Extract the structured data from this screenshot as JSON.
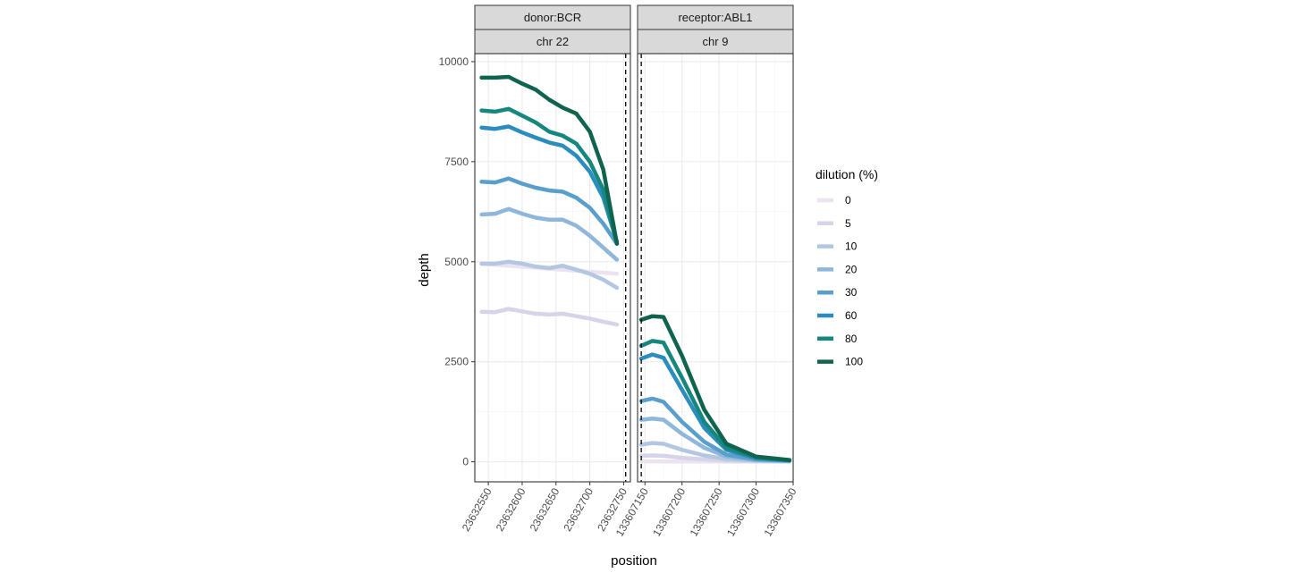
{
  "chart_data": {
    "type": "line",
    "xlabel": "position",
    "ylabel": "depth",
    "ylim": [
      -500,
      10200
    ],
    "y_ticks": [
      0,
      2500,
      5000,
      7500,
      10000
    ],
    "y_tick_labels": [
      "0",
      "2500",
      "5000",
      "7500",
      "10000"
    ],
    "grid": true,
    "legend": {
      "title": "dilution (%)",
      "placement": "right",
      "entries": [
        "0",
        "5",
        "10",
        "20",
        "30",
        "60",
        "80",
        "100"
      ]
    },
    "colors": {
      "0": "#ece2f0",
      "5": "#d5d4e8",
      "10": "#b3c6e2",
      "20": "#8fb6db",
      "30": "#5a9fcc",
      "60": "#2b8cbe",
      "80": "#16877f",
      "100": "#10634f"
    },
    "panels": [
      {
        "strip_top": "donor:BCR",
        "strip_bottom": "chr 22",
        "xlim": [
          23632530,
          23632760
        ],
        "x_ticks": [
          23632550,
          23632600,
          23632650,
          23632700,
          23632750
        ],
        "x_tick_labels": [
          "23632550",
          "23632600",
          "23632650",
          "23632700",
          "23632750"
        ],
        "vline": 23632753,
        "series": [
          {
            "name": "0",
            "x": [
              23632540,
              23632580,
              23632620,
              23632660,
              23632700,
              23632740
            ],
            "values": [
              4950,
              4900,
              4850,
              4800,
              4750,
              4700
            ]
          },
          {
            "name": "5",
            "x": [
              23632540,
              23632560,
              23632580,
              23632600,
              23632620,
              23632640,
              23632660,
              23632680,
              23632700,
              23632720,
              23632740
            ],
            "values": [
              3750,
              3740,
              3820,
              3760,
              3700,
              3680,
              3700,
              3640,
              3580,
              3500,
              3430
            ]
          },
          {
            "name": "10",
            "x": [
              23632540,
              23632560,
              23632580,
              23632600,
              23632620,
              23632640,
              23632660,
              23632680,
              23632700,
              23632720,
              23632740
            ],
            "values": [
              4950,
              4950,
              5000,
              4950,
              4880,
              4840,
              4900,
              4800,
              4700,
              4550,
              4350
            ]
          },
          {
            "name": "20",
            "x": [
              23632540,
              23632560,
              23632580,
              23632600,
              23632620,
              23632640,
              23632660,
              23632680,
              23632700,
              23632720,
              23632740
            ],
            "values": [
              6180,
              6200,
              6320,
              6200,
              6100,
              6050,
              6050,
              5900,
              5650,
              5350,
              5050
            ]
          },
          {
            "name": "30",
            "x": [
              23632540,
              23632560,
              23632580,
              23632600,
              23632620,
              23632640,
              23632660,
              23632680,
              23632700,
              23632720,
              23632740
            ],
            "values": [
              7000,
              6980,
              7080,
              6950,
              6850,
              6780,
              6750,
              6600,
              6350,
              5950,
              5450
            ]
          },
          {
            "name": "60",
            "x": [
              23632540,
              23632560,
              23632580,
              23632600,
              23632620,
              23632640,
              23632660,
              23632680,
              23632700,
              23632720,
              23632740
            ],
            "values": [
              8350,
              8320,
              8380,
              8230,
              8100,
              7980,
              7900,
              7650,
              7250,
              6600,
              5500
            ]
          },
          {
            "name": "80",
            "x": [
              23632540,
              23632560,
              23632580,
              23632600,
              23632620,
              23632640,
              23632660,
              23632680,
              23632700,
              23632720,
              23632740
            ],
            "values": [
              8780,
              8750,
              8820,
              8650,
              8480,
              8250,
              8150,
              7950,
              7500,
              6800,
              5450
            ]
          },
          {
            "name": "100",
            "x": [
              23632540,
              23632560,
              23632580,
              23632600,
              23632620,
              23632640,
              23632660,
              23632680,
              23632700,
              23632720,
              23632740
            ],
            "values": [
              9600,
              9600,
              9620,
              9450,
              9300,
              9050,
              8850,
              8700,
              8250,
              7300,
              5450
            ]
          }
        ]
      },
      {
        "strip_top": "receptor:ABL1",
        "strip_bottom": "chr 9",
        "xlim": [
          133607140,
          133607350
        ],
        "x_ticks": [
          133607150,
          133607200,
          133607250,
          133607300,
          133607350
        ],
        "x_tick_labels": [
          "133607150",
          "133607200",
          "133607250",
          "133607300",
          "133607350"
        ],
        "vline": 133607145,
        "series": [
          {
            "name": "0",
            "x": [
              133607145,
              133607160,
              133607180,
              133607220,
              133607260,
              133607300,
              133607345
            ],
            "values": [
              10,
              10,
              10,
              8,
              5,
              3,
              2
            ]
          },
          {
            "name": "5",
            "x": [
              133607145,
              133607160,
              133607175,
              133607200,
              133607230,
              133607260,
              133607300,
              133607345
            ],
            "values": [
              150,
              160,
              150,
              100,
              60,
              30,
              15,
              8
            ]
          },
          {
            "name": "10",
            "x": [
              133607145,
              133607160,
              133607175,
              133607200,
              133607230,
              133607260,
              133607300,
              133607345
            ],
            "values": [
              430,
              470,
              450,
              300,
              160,
              70,
              30,
              15
            ]
          },
          {
            "name": "20",
            "x": [
              133607145,
              133607160,
              133607175,
              133607200,
              133607230,
              133607260,
              133607300,
              133607345
            ],
            "values": [
              1050,
              1080,
              1050,
              700,
              350,
              130,
              45,
              20
            ]
          },
          {
            "name": "30",
            "x": [
              133607145,
              133607160,
              133607175,
              133607200,
              133607230,
              133607260,
              133607300,
              133607345
            ],
            "values": [
              1520,
              1580,
              1500,
              1000,
              500,
              180,
              60,
              25
            ]
          },
          {
            "name": "60",
            "x": [
              133607145,
              133607160,
              133607175,
              133607200,
              133607230,
              133607260,
              133607300,
              133607345
            ],
            "values": [
              2580,
              2680,
              2600,
              1800,
              850,
              300,
              90,
              35
            ]
          },
          {
            "name": "80",
            "x": [
              133607145,
              133607160,
              133607175,
              133607200,
              133607230,
              133607260,
              133607300,
              133607345
            ],
            "values": [
              2900,
              3020,
              2980,
              2100,
              1000,
              350,
              110,
              40
            ]
          },
          {
            "name": "100",
            "x": [
              133607145,
              133607160,
              133607175,
              133607200,
              133607230,
              133607260,
              133607300,
              133607345
            ],
            "values": [
              3550,
              3640,
              3620,
              2650,
              1300,
              450,
              130,
              45
            ]
          }
        ]
      }
    ]
  }
}
